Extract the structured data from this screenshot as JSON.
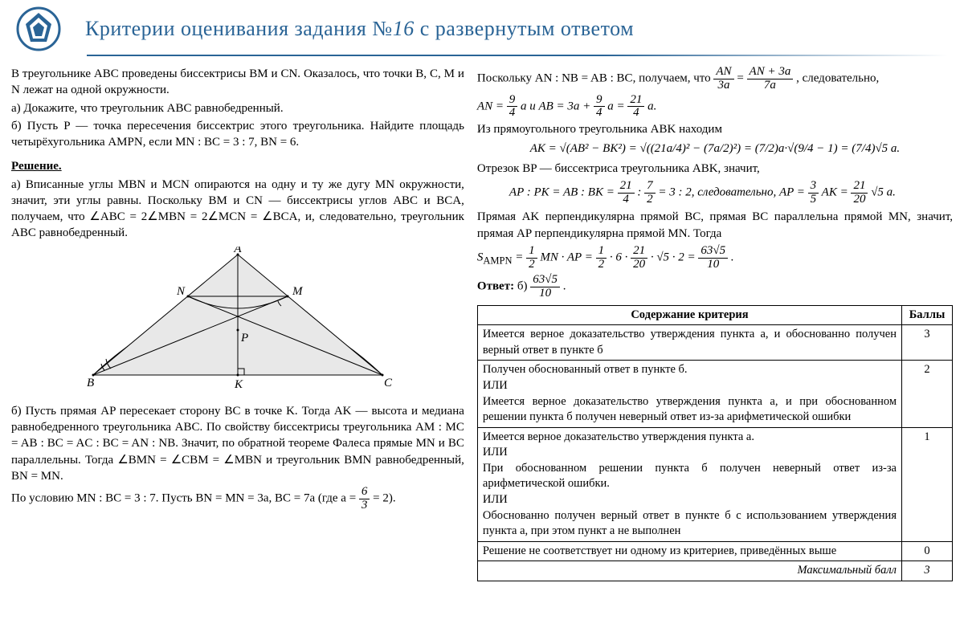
{
  "colors": {
    "title": "#2a6496",
    "logo_outer": "#2a6496",
    "logo_inner": "#ffffff",
    "text": "#000",
    "border": "#000"
  },
  "header": {
    "title_prefix": "Критерии оценивания задания №",
    "title_number": "16",
    "title_suffix": " с развернутым ответом"
  },
  "problem": {
    "l1": "В треугольнике ABC проведены биссектрисы BM и CN. Оказалось, что точки B, C, M и N лежат на одной окружности.",
    "l2": "а) Докажите, что треугольник ABC равнобедренный.",
    "l3": "б) Пусть P — точка пересечения биссектрис этого треугольника. Найдите площадь четырёхугольника AMPN, если MN : BC = 3 : 7, BN = 6."
  },
  "solution_label": "Решение.",
  "sol_a": "а) Вписанные углы MBN и MCN опираются на одну и ту же дугу MN окружности, значит, эти углы равны. Поскольку BM и CN — биссектрисы углов ABC и BCA, получаем, что ∠ABC = 2∠MBN = 2∠MCN = ∠BCA, и, следовательно, треугольник ABC равнобедренный.",
  "diagram": {
    "labels": {
      "A": "A",
      "B": "B",
      "C": "C",
      "N": "N",
      "M": "M",
      "P": "P",
      "K": "K"
    }
  },
  "sol_b1": "б) Пусть прямая AP пересекает сторону BC в точке K. Тогда AK — высота и медиана равнобедренного треугольника ABC. По свойству биссектрисы треугольника AM : MC = AB : BC = AC : BC = AN : NB. Значит, по обратной теореме Фалеса прямые MN и BC параллельны. Тогда ∠BMN = ∠CBM = ∠MBN и треугольник BMN равнобедренный, BN = MN.",
  "sol_b2_prefix": "По условию MN : BC = 3 : 7. Пусть BN = MN = 3a, BC = 7a (где a = ",
  "sol_b2_frac": {
    "n": "6",
    "d": "3"
  },
  "sol_b2_suffix": " = 2).",
  "right": {
    "r1_a": "Поскольку AN : NB = AB : BC, получаем, что ",
    "r1_f1": {
      "n": "AN",
      "d": "3a"
    },
    "r1_mid": " = ",
    "r1_f2": {
      "n": "AN + 3a",
      "d": "7a"
    },
    "r1_b": ", следовательно,",
    "r2_a": "AN = ",
    "r2_f1": {
      "n": "9",
      "d": "4"
    },
    "r2_b": "a и AB = 3a + ",
    "r2_f2": {
      "n": "9",
      "d": "4"
    },
    "r2_c": "a = ",
    "r2_f3": {
      "n": "21",
      "d": "4"
    },
    "r2_d": "a.",
    "r3": "Из прямоугольного треугольника ABK находим",
    "r4": "AK = √(AB² − BK²) = √((21a/4)² − (7a/2)²) = (7/2)a·√(9/4 − 1) = (7/4)√5 a.",
    "r5": "Отрезок BP — биссектриса треугольника ABK, значит,",
    "r6_a": "AP : PK = AB : BK = ",
    "r6_f1": {
      "n": "21",
      "d": "4"
    },
    "r6_b": " : ",
    "r6_f2": {
      "n": "7",
      "d": "2"
    },
    "r6_c": " = 3 : 2, следовательно, AP = ",
    "r6_f3": {
      "n": "3",
      "d": "5"
    },
    "r6_d": "AK = ",
    "r6_f4": {
      "n": "21",
      "d": "20"
    },
    "r6_e": "√5 a.",
    "r7": "Прямая AK перпендикулярна прямой BC, прямая BC параллельна прямой MN, значит, прямая AP перпендикулярна прямой MN. Тогда",
    "r8_a": "S",
    "r8_sub": "AMPN",
    "r8_b": " = ",
    "r8_f1": {
      "n": "1",
      "d": "2"
    },
    "r8_c": "MN · AP = ",
    "r8_f2": {
      "n": "1",
      "d": "2"
    },
    "r8_d": " · 6 · ",
    "r8_f3": {
      "n": "21",
      "d": "20"
    },
    "r8_e": " · √5 · 2 = ",
    "r8_f4": {
      "n": "63√5",
      "d": "10"
    },
    "r8_f": ".",
    "ans_label": "Ответ:",
    "ans_prefix": " б) ",
    "ans_frac": {
      "n": "63√5",
      "d": "10"
    },
    "ans_suffix": "."
  },
  "rubric": {
    "h1": "Содержание критерия",
    "h2": "Баллы",
    "rows": [
      {
        "desc": "Имеется верное доказательство утверждения пункта а, и обоснованно получен верный ответ в пункте б",
        "pts": "3"
      },
      {
        "desc": "Получен обоснованный ответ в пункте б.\nИЛИ\nИмеется верное доказательство утверждения пункта а, и при обоснованном решении пункта б получен неверный ответ из-за арифметической ошибки",
        "pts": "2"
      },
      {
        "desc": "Имеется верное доказательство утверждения пункта а.\nИЛИ\nПри обоснованном решении пункта б получен неверный ответ из-за арифметической ошибки.\nИЛИ\nОбоснованно получен верный ответ в пункте б с использованием утверждения пункта а, при этом пункт а не выполнен",
        "pts": "1"
      },
      {
        "desc": "Решение не соответствует ни одному из критериев, приведённых выше",
        "pts": "0"
      }
    ],
    "max_label": "Максимальный балл",
    "max_pts": "3"
  }
}
